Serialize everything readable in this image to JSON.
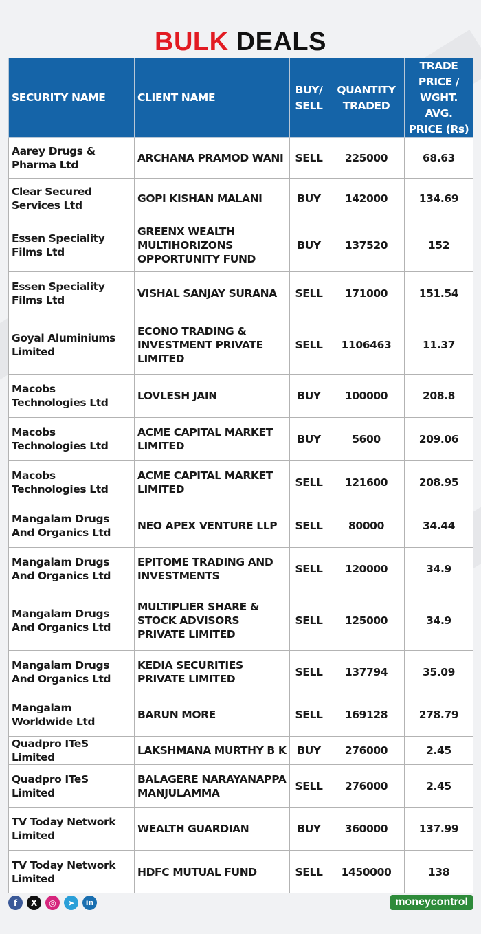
{
  "title": {
    "part1": "BULK",
    "part2": "DEALS"
  },
  "headers": {
    "security": "SECURITY NAME",
    "client": "CLIENT NAME",
    "side_line1": "BUY/",
    "side_line2": "SELL",
    "qty_line1": "QUANTITY",
    "qty_line2": "TRADED",
    "price_line1": "TRADE",
    "price_line2": "PRICE /",
    "price_line3": "WGHT. AVG.",
    "price_line4": "PRICE (Rs)"
  },
  "rows": [
    {
      "security": "Aarey Drugs & Pharma Ltd",
      "client": "ARCHANA PRAMOD WANI",
      "side": "SELL",
      "qty": "225000",
      "price": "68.63"
    },
    {
      "security": "Clear Secured Services Ltd",
      "client": "GOPI KISHAN MALANI",
      "side": "BUY",
      "qty": "142000",
      "price": "134.69"
    },
    {
      "security": "Essen Speciality Films Ltd",
      "client": "GREENX WEALTH MULTIHORIZONS OPPORTUNITY FUND",
      "side": "BUY",
      "qty": "137520",
      "price": "152"
    },
    {
      "security": "Essen Speciality Films Ltd",
      "client": "VISHAL SANJAY SURANA",
      "side": "SELL",
      "qty": "171000",
      "price": "151.54"
    },
    {
      "security": "Goyal Aluminiums Limited",
      "client": "ECONO TRADING & INVESTMENT PRIVATE LIMITED",
      "side": "SELL",
      "qty": "1106463",
      "price": "11.37"
    },
    {
      "security": "Macobs Technologies Ltd",
      "client": "LOVLESH JAIN",
      "side": "BUY",
      "qty": "100000",
      "price": "208.8"
    },
    {
      "security": "Macobs Technologies Ltd",
      "client": "ACME CAPITAL MARKET LIMITED",
      "side": "BUY",
      "qty": "5600",
      "price": "209.06"
    },
    {
      "security": "Macobs Technologies Ltd",
      "client": "ACME CAPITAL MARKET LIMITED",
      "side": "SELL",
      "qty": "121600",
      "price": "208.95"
    },
    {
      "security": "Mangalam Drugs And Organics Ltd",
      "client": "NEO APEX VENTURE LLP",
      "side": "SELL",
      "qty": "80000",
      "price": "34.44"
    },
    {
      "security": "Mangalam Drugs And Organics Ltd",
      "client": "EPITOME TRADING AND INVESTMENTS",
      "side": "SELL",
      "qty": "120000",
      "price": "34.9"
    },
    {
      "security": "Mangalam Drugs And Organics Ltd",
      "client": "MULTIPLIER SHARE & STOCK ADVISORS PRIVATE LIMITED",
      "side": "SELL",
      "qty": "125000",
      "price": "34.9"
    },
    {
      "security": "Mangalam Drugs And Organics Ltd",
      "client": "KEDIA SECURITIES PRIVATE LIMITED",
      "side": "SELL",
      "qty": "137794",
      "price": "35.09"
    },
    {
      "security": "Mangalam Worldwide Ltd",
      "client": "BARUN  MORE",
      "side": "SELL",
      "qty": "169128",
      "price": "278.79"
    },
    {
      "security": "Quadpro ITeS Limited",
      "client": "LAKSHMANA MURTHY B K",
      "side": "BUY",
      "qty": "276000",
      "price": "2.45"
    },
    {
      "security": "Quadpro ITeS Limited",
      "client": "BALAGERE NARAYANAPPA MANJULAMMA",
      "side": "SELL",
      "qty": "276000",
      "price": "2.45"
    },
    {
      "security": "TV Today Network Limited",
      "client": "WEALTH GUARDIAN",
      "side": "BUY",
      "qty": "360000",
      "price": "137.99"
    },
    {
      "security": "TV Today Network Limited",
      "client": "HDFC MUTUAL FUND",
      "side": "SELL",
      "qty": "1450000",
      "price": "138"
    }
  ],
  "footer": {
    "social_icons": [
      {
        "icon": "facebook-icon",
        "glyph": "f"
      },
      {
        "icon": "x-icon",
        "glyph": "X"
      },
      {
        "icon": "instagram-icon",
        "glyph": "◎"
      },
      {
        "icon": "telegram-icon",
        "glyph": "➤"
      },
      {
        "icon": "linkedin-icon",
        "glyph": "in"
      }
    ],
    "logo_text": "moneycontrol"
  },
  "colors": {
    "header_bg": "#1564a8",
    "title_accent": "#e21b22",
    "logo_bg": "#2e8b3a"
  }
}
